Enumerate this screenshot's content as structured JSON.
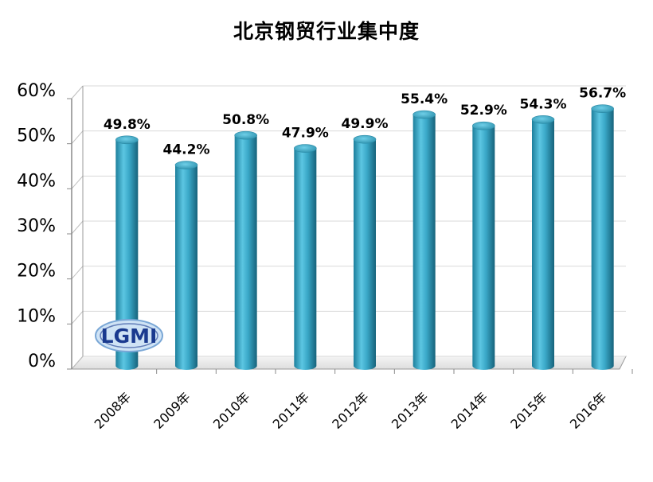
{
  "chart_data": {
    "type": "bar",
    "title": "北京钢贸行业集中度",
    "categories": [
      "2008年",
      "2009年",
      "2010年",
      "2011年",
      "2012年",
      "2013年",
      "2014年",
      "2015年",
      "2016年"
    ],
    "values": [
      49.8,
      44.2,
      50.8,
      47.9,
      49.9,
      55.4,
      52.9,
      54.3,
      56.7
    ],
    "data_labels": [
      "49.8%",
      "44.2%",
      "50.8%",
      "47.9%",
      "49.9%",
      "55.4%",
      "52.9%",
      "54.3%",
      "56.7%"
    ],
    "ylim": [
      0,
      60
    ],
    "yticks": [
      0,
      10,
      20,
      30,
      40,
      50,
      60
    ],
    "ytick_labels": [
      "0%",
      "10%",
      "20%",
      "30%",
      "40%",
      "50%",
      "60%"
    ],
    "xlabel": "",
    "ylabel": "",
    "grid": true,
    "bar_color": "#3aa8c8",
    "logo_text": "LGMI"
  }
}
